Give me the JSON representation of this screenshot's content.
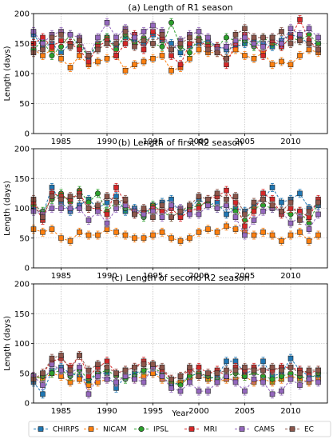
{
  "figure": {
    "xlabel": "Year"
  },
  "legend": {
    "placement": "bottom",
    "entries": [
      {
        "name": "CHIRPS",
        "color": "#1f77b4"
      },
      {
        "name": "NICAM",
        "color": "#ff7f0e"
      },
      {
        "name": "IPSL",
        "color": "#2ca02c"
      },
      {
        "name": "MRI",
        "color": "#d62728"
      },
      {
        "name": "CAMS",
        "color": "#9467bd"
      },
      {
        "name": "EC",
        "color": "#8c564b"
      }
    ]
  },
  "chart_data": [
    {
      "type": "line",
      "title": "(a) Length of R1 season",
      "ylabel": "Length (days)",
      "xlim": [
        1982,
        2014
      ],
      "ylim": [
        0,
        200
      ],
      "xticks": [
        1985,
        1990,
        1995,
        2000,
        2005,
        2010
      ],
      "yticks": [
        0,
        50,
        100,
        150,
        200
      ],
      "grid": true,
      "x": [
        1982,
        1983,
        1984,
        1985,
        1986,
        1987,
        1988,
        1989,
        1990,
        1991,
        1992,
        1993,
        1994,
        1995,
        1996,
        1997,
        1998,
        1999,
        2000,
        2001,
        2002,
        2003,
        2004,
        2005,
        2006,
        2007,
        2008,
        2009,
        2010,
        2011,
        2012,
        2013
      ],
      "series": [
        {
          "name": "CHIRPS",
          "values": [
            165,
            145,
            150,
            135,
            150,
            155,
            125,
            150,
            160,
            145,
            160,
            155,
            150,
            165,
            155,
            150,
            135,
            145,
            150,
            155,
            145,
            140,
            145,
            150,
            155,
            150,
            145,
            155,
            165,
            160,
            150,
            150
          ]
        },
        {
          "name": "NICAM",
          "values": [
            140,
            130,
            140,
            125,
            110,
            130,
            115,
            120,
            125,
            130,
            105,
            115,
            120,
            125,
            130,
            105,
            110,
            125,
            140,
            135,
            135,
            125,
            140,
            130,
            125,
            135,
            115,
            120,
            115,
            130,
            140,
            135
          ]
        },
        {
          "name": "IPSL",
          "values": [
            140,
            155,
            130,
            145,
            165,
            145,
            130,
            150,
            160,
            140,
            165,
            150,
            160,
            150,
            145,
            185,
            145,
            135,
            160,
            150,
            145,
            160,
            155,
            155,
            145,
            160,
            150,
            145,
            160,
            155,
            165,
            150
          ]
        },
        {
          "name": "MRI",
          "values": [
            150,
            160,
            145,
            155,
            150,
            140,
            120,
            145,
            155,
            130,
            150,
            165,
            140,
            170,
            160,
            130,
            115,
            150,
            155,
            145,
            145,
            115,
            150,
            165,
            150,
            130,
            155,
            145,
            160,
            190,
            155,
            140
          ]
        },
        {
          "name": "CAMS",
          "values": [
            170,
            150,
            165,
            170,
            165,
            160,
            130,
            160,
            185,
            160,
            175,
            160,
            170,
            180,
            170,
            140,
            155,
            165,
            170,
            160,
            140,
            145,
            155,
            160,
            150,
            145,
            160,
            150,
            175,
            165,
            175,
            160
          ]
        },
        {
          "name": "EC",
          "values": [
            135,
            140,
            160,
            165,
            145,
            155,
            130,
            140,
            150,
            150,
            170,
            145,
            155,
            150,
            165,
            140,
            150,
            160,
            155,
            140,
            135,
            125,
            165,
            175,
            160,
            160,
            160,
            170,
            150,
            155,
            150,
            140
          ]
        }
      ]
    },
    {
      "type": "line",
      "title": "(b) Length of first R2 season",
      "ylabel": "Length (days)",
      "xlim": [
        1982,
        2014
      ],
      "ylim": [
        0,
        200
      ],
      "xticks": [
        1985,
        1990,
        1995,
        2000,
        2005,
        2010
      ],
      "yticks": [
        0,
        50,
        100,
        150,
        200
      ],
      "grid": true,
      "x": [
        1982,
        1983,
        1984,
        1985,
        1986,
        1987,
        1988,
        1989,
        1990,
        1991,
        1992,
        1993,
        1994,
        1995,
        1996,
        1997,
        1998,
        1999,
        2000,
        2001,
        2002,
        2003,
        2004,
        2005,
        2006,
        2007,
        2008,
        2009,
        2010,
        2011,
        2012,
        2013
      ],
      "series": [
        {
          "name": "CHIRPS",
          "values": [
            100,
            90,
            135,
            110,
            95,
            105,
            115,
            100,
            110,
            120,
            95,
            100,
            90,
            105,
            110,
            115,
            90,
            100,
            115,
            105,
            110,
            90,
            100,
            95,
            105,
            115,
            135,
            110,
            115,
            125,
            100,
            105
          ]
        },
        {
          "name": "NICAM",
          "values": [
            65,
            60,
            65,
            50,
            45,
            60,
            55,
            55,
            65,
            60,
            55,
            50,
            50,
            55,
            60,
            50,
            45,
            50,
            60,
            65,
            60,
            70,
            65,
            60,
            55,
            60,
            55,
            45,
            55,
            60,
            45,
            55
          ]
        },
        {
          "name": "IPSL",
          "values": [
            105,
            95,
            115,
            125,
            110,
            130,
            110,
            125,
            95,
            110,
            100,
            95,
            85,
            105,
            95,
            85,
            95,
            100,
            105,
            110,
            100,
            105,
            95,
            80,
            100,
            105,
            100,
            95,
            90,
            95,
            75,
            110
          ]
        },
        {
          "name": "MRI",
          "values": [
            110,
            80,
            125,
            120,
            115,
            125,
            100,
            100,
            90,
            135,
            110,
            90,
            95,
            100,
            95,
            100,
            85,
            95,
            100,
            115,
            120,
            130,
            110,
            70,
            95,
            125,
            115,
            90,
            100,
            95,
            85,
            115
          ]
        },
        {
          "name": "CAMS",
          "values": [
            95,
            90,
            100,
            100,
            100,
            100,
            80,
            95,
            75,
            100,
            105,
            95,
            90,
            95,
            85,
            105,
            100,
            90,
            90,
            105,
            100,
            105,
            85,
            55,
            80,
            95,
            100,
            95,
            75,
            85,
            65,
            90
          ]
        },
        {
          "name": "EC",
          "values": [
            115,
            85,
            120,
            115,
            120,
            120,
            100,
            105,
            120,
            110,
            115,
            90,
            100,
            85,
            105,
            85,
            95,
            105,
            120,
            115,
            125,
            115,
            120,
            90,
            110,
            115,
            105,
            95,
            110,
            80,
            95,
            110
          ]
        }
      ]
    },
    {
      "type": "line",
      "title": "(c) Length of second R2 season",
      "ylabel": "Length (days)",
      "xlim": [
        1982,
        2014
      ],
      "ylim": [
        0,
        200
      ],
      "xticks": [
        1985,
        1990,
        1995,
        2000,
        2005,
        2010
      ],
      "yticks": [
        0,
        50,
        100,
        150,
        200
      ],
      "grid": true,
      "x": [
        1982,
        1983,
        1984,
        1985,
        1986,
        1987,
        1988,
        1989,
        1990,
        1991,
        1992,
        1993,
        1994,
        1995,
        1996,
        1997,
        1998,
        1999,
        2000,
        2001,
        2002,
        2003,
        2004,
        2005,
        2006,
        2007,
        2008,
        2009,
        2010,
        2011,
        2012,
        2013
      ],
      "series": [
        {
          "name": "CHIRPS",
          "values": [
            35,
            15,
            55,
            60,
            50,
            45,
            35,
            50,
            50,
            25,
            45,
            50,
            55,
            50,
            45,
            30,
            35,
            45,
            50,
            40,
            45,
            70,
            70,
            50,
            55,
            70,
            45,
            50,
            75,
            55,
            45,
            45
          ]
        },
        {
          "name": "NICAM",
          "values": [
            45,
            40,
            50,
            45,
            35,
            40,
            30,
            35,
            40,
            35,
            45,
            40,
            45,
            50,
            40,
            35,
            35,
            40,
            45,
            40,
            35,
            40,
            40,
            45,
            35,
            40,
            35,
            40,
            45,
            40,
            35,
            40
          ]
        },
        {
          "name": "IPSL",
          "values": [
            40,
            45,
            50,
            55,
            45,
            55,
            40,
            50,
            55,
            45,
            40,
            45,
            55,
            60,
            50,
            35,
            30,
            45,
            50,
            45,
            40,
            45,
            50,
            45,
            50,
            45,
            40,
            45,
            50,
            45,
            40,
            50
          ]
        },
        {
          "name": "MRI",
          "values": [
            40,
            50,
            70,
            75,
            60,
            80,
            45,
            60,
            70,
            50,
            55,
            60,
            70,
            65,
            55,
            40,
            45,
            55,
            60,
            50,
            55,
            45,
            60,
            55,
            60,
            55,
            55,
            60,
            60,
            55,
            50,
            55
          ]
        },
        {
          "name": "CAMS",
          "values": [
            45,
            30,
            65,
            55,
            50,
            60,
            15,
            45,
            40,
            35,
            45,
            40,
            35,
            60,
            45,
            25,
            20,
            35,
            20,
            20,
            35,
            45,
            35,
            20,
            40,
            35,
            15,
            20,
            40,
            30,
            40,
            35
          ]
        },
        {
          "name": "EC",
          "values": [
            40,
            50,
            75,
            80,
            55,
            80,
            55,
            65,
            60,
            50,
            55,
            60,
            65,
            65,
            60,
            40,
            45,
            60,
            45,
            50,
            50,
            55,
            55,
            60,
            55,
            55,
            60,
            55,
            60,
            50,
            55,
            55
          ]
        }
      ]
    }
  ]
}
